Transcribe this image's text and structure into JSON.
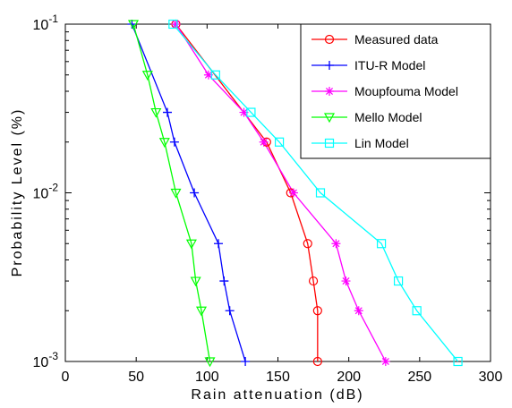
{
  "chart_data": {
    "type": "line",
    "xlabel": "Rain attenuation (dB)",
    "ylabel": "Probability Level (%)",
    "xlim": [
      0,
      300
    ],
    "ylim": [
      0.001,
      0.1
    ],
    "yscale": "log",
    "xticks": [
      "0",
      "50",
      "100",
      "150",
      "200",
      "250",
      "300"
    ],
    "yticks": [
      {
        "value": 0.1,
        "base": "10",
        "exp": "-1"
      },
      {
        "value": 0.01,
        "base": "10",
        "exp": "-2"
      },
      {
        "value": 0.001,
        "base": "10",
        "exp": "-3"
      }
    ],
    "grid": false,
    "legend_position": "top-right",
    "series": [
      {
        "name": "Measured data",
        "color": "#ff0000",
        "marker": "circle",
        "x": [
          78,
          142,
          159,
          171,
          175,
          178,
          178
        ],
        "y": [
          0.1,
          0.02,
          0.01,
          0.005,
          0.003,
          0.002,
          0.001
        ]
      },
      {
        "name": "ITU-R Model",
        "color": "#0000ff",
        "marker": "plus",
        "x": [
          47,
          72,
          77,
          91,
          108,
          112,
          116,
          127
        ],
        "y": [
          0.1,
          0.03,
          0.02,
          0.01,
          0.005,
          0.003,
          0.002,
          0.001
        ]
      },
      {
        "name": "Moupfouma Model",
        "color": "#ff00ff",
        "marker": "star",
        "x": [
          78,
          101,
          126,
          140,
          161,
          191,
          198,
          207,
          226
        ],
        "y": [
          0.1,
          0.05,
          0.03,
          0.02,
          0.01,
          0.005,
          0.003,
          0.002,
          0.001
        ]
      },
      {
        "name": "Mello Model",
        "color": "#00ff00",
        "marker": "triangle-down",
        "x": [
          48,
          58,
          64,
          70,
          78,
          89,
          92,
          96,
          102
        ],
        "y": [
          0.1,
          0.05,
          0.03,
          0.02,
          0.01,
          0.005,
          0.003,
          0.002,
          0.001
        ]
      },
      {
        "name": "Lin Model",
        "color": "#00ffff",
        "marker": "square",
        "x": [
          76,
          106,
          131,
          151,
          180,
          223,
          235,
          248,
          277
        ],
        "y": [
          0.1,
          0.05,
          0.03,
          0.02,
          0.01,
          0.005,
          0.003,
          0.002,
          0.001
        ]
      }
    ]
  }
}
